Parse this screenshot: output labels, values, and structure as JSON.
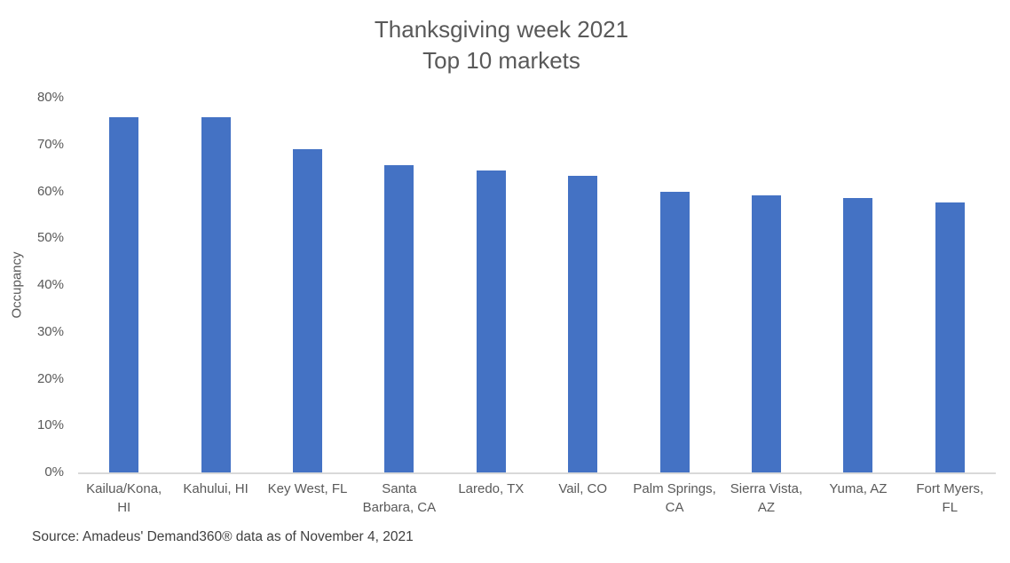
{
  "chart_data": {
    "type": "bar",
    "title": "Thanksgiving week 2021 Top 10 markets",
    "title_lines": [
      "Thanksgiving week 2021",
      "Top 10 markets"
    ],
    "xlabel": "",
    "ylabel": "Occupancy",
    "categories": [
      "Kailua/Kona, HI",
      "Kahului, HI",
      "Key West, FL",
      "Santa Barbara, CA",
      "Laredo, TX",
      "Vail, CO",
      "Palm Springs, CA",
      "Sierra Vista, AZ",
      "Yuma, AZ",
      "Fort Myers, FL"
    ],
    "category_label_lines": [
      [
        "Kailua/Kona,",
        "HI"
      ],
      [
        "Kahului, HI"
      ],
      [
        "Key West, FL"
      ],
      [
        "Santa",
        "Barbara, CA"
      ],
      [
        "Laredo, TX"
      ],
      [
        "Vail, CO"
      ],
      [
        "Palm Springs,",
        "CA"
      ],
      [
        "Sierra Vista,",
        "AZ"
      ],
      [
        "Yuma, AZ"
      ],
      [
        "Fort Myers,",
        "FL"
      ]
    ],
    "values": [
      75.8,
      75.8,
      69.0,
      65.6,
      64.5,
      63.4,
      60.0,
      59.1,
      58.6,
      57.6
    ],
    "unit": "%",
    "y_ticks": [
      "0%",
      "10%",
      "20%",
      "30%",
      "40%",
      "50%",
      "60%",
      "70%",
      "80%"
    ],
    "ylim": [
      0,
      80
    ],
    "grid": false,
    "legend": false,
    "bar_color": "#4472C4",
    "axis_line_color": "#D9D9D9",
    "title_color": "#595959",
    "label_color": "#595959"
  },
  "footer": {
    "source": "Source: Amadeus' Demand360® data as of November 4, 2021"
  }
}
